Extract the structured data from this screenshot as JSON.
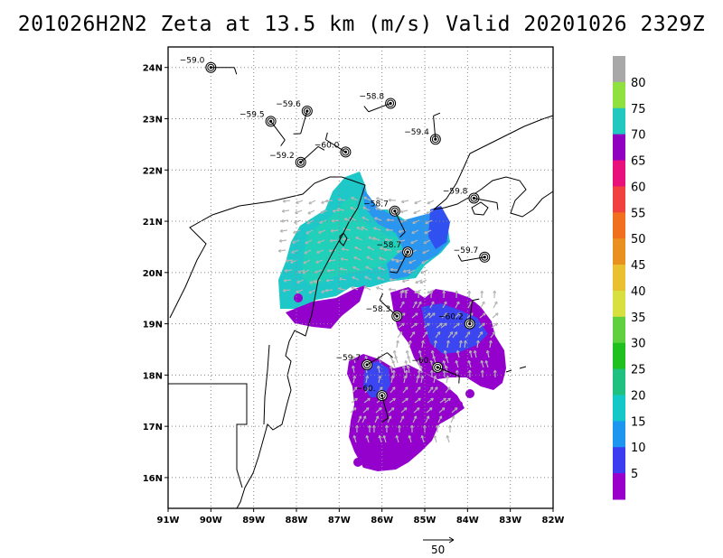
{
  "title": "201026H2N2 Zeta at 13.5 km (m/s) Valid 20201026 2329Z",
  "map": {
    "lon_range": [
      -91,
      -82
    ],
    "lat_range": [
      15.4,
      24.4
    ],
    "lon_ticks": [
      "91W",
      "90W",
      "89W",
      "88W",
      "87W",
      "86W",
      "85W",
      "84W",
      "83W",
      "82W"
    ],
    "lat_ticks": [
      "16N",
      "17N",
      "18N",
      "19N",
      "20N",
      "21N",
      "22N",
      "23N",
      "24N"
    ],
    "grid": "dotted"
  },
  "colorbar": {
    "labels": [
      "5",
      "10",
      "15",
      "20",
      "25",
      "30",
      "35",
      "40",
      "45",
      "50",
      "55",
      "60",
      "65",
      "70",
      "75",
      "80"
    ],
    "colors": [
      "#9a00cc",
      "#3c3cf0",
      "#1e96f0",
      "#14c8c8",
      "#20c080",
      "#20c020",
      "#60d040",
      "#d8e040",
      "#e8c030",
      "#e89020",
      "#f07020",
      "#f04040",
      "#e8107a",
      "#9000c0",
      "#20c8c0",
      "#90e040",
      "#a8a8a8"
    ]
  },
  "observations": [
    {
      "label": "−59.0",
      "lon": -90.0,
      "lat": 24.0
    },
    {
      "label": "−59.5",
      "lon": -88.6,
      "lat": 22.95
    },
    {
      "label": "−59.6",
      "lon": -87.75,
      "lat": 23.15
    },
    {
      "label": "−58.8",
      "lon": -85.8,
      "lat": 23.3
    },
    {
      "label": "−60.0",
      "lon": -86.85,
      "lat": 22.35
    },
    {
      "label": "−59.4",
      "lon": -84.75,
      "lat": 22.6
    },
    {
      "label": "−59.2",
      "lon": -87.9,
      "lat": 22.15
    },
    {
      "label": "−59.8",
      "lon": -83.85,
      "lat": 21.45
    },
    {
      "label": "−58.7",
      "lon": -85.7,
      "lat": 21.2
    },
    {
      "label": "−58.7",
      "lon": -85.4,
      "lat": 20.4
    },
    {
      "label": "−59.7",
      "lon": -83.6,
      "lat": 20.3
    },
    {
      "label": "−58.3",
      "lon": -85.65,
      "lat": 19.15
    },
    {
      "label": "−60.2",
      "lon": -83.95,
      "lat": 19.0
    },
    {
      "label": "−59.7",
      "lon": -86.35,
      "lat": 18.2
    },
    {
      "label": "−60.",
      "lon": -84.7,
      "lat": 18.15
    },
    {
      "label": "−60.",
      "lon": -86.0,
      "lat": 17.6
    }
  ],
  "reference_vector": {
    "label": "50"
  }
}
